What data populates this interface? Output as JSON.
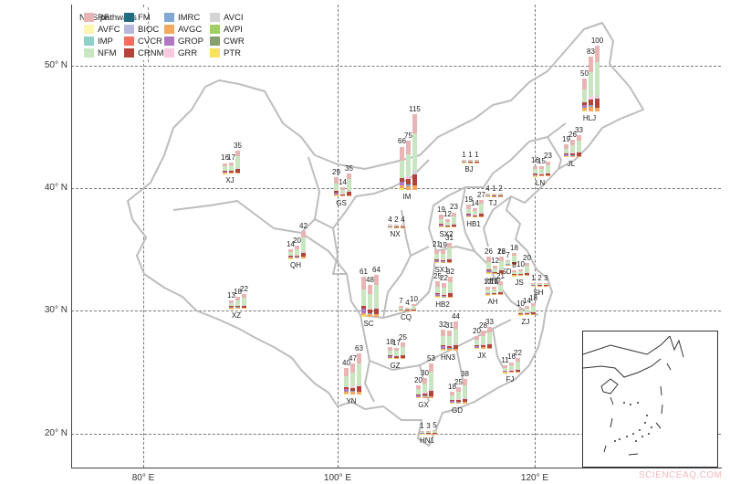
{
  "chart_data": {
    "type": "map-stacked-bar",
    "title": "",
    "legend_title": "NCS pathways",
    "legend": [
      {
        "code": "RF",
        "color": "#e8b4b4"
      },
      {
        "code": "AVFC",
        "color": "#fdf5b0"
      },
      {
        "code": "IMP",
        "color": "#8fd0c8"
      },
      {
        "code": "NFM",
        "color": "#c8e6c0"
      },
      {
        "code": "FM",
        "color": "#1f6b80"
      },
      {
        "code": "BIOC",
        "color": "#b8b8dc"
      },
      {
        "code": "CVCR",
        "color": "#f07060"
      },
      {
        "code": "CRNM",
        "color": "#b0443a"
      },
      {
        "code": "IMRC",
        "color": "#80a8d0"
      },
      {
        "code": "AVGC",
        "color": "#f4a860"
      },
      {
        "code": "GROP",
        "color": "#b078c0"
      },
      {
        "code": "GRR",
        "color": "#f8c8e0"
      },
      {
        "code": "AVCI",
        "color": "#d4d4d4"
      },
      {
        "code": "AVPI",
        "color": "#a0d060"
      },
      {
        "code": "CWR",
        "color": "#88a070"
      },
      {
        "code": "PTR",
        "color": "#f8e060"
      }
    ],
    "x_axis": {
      "ticks": [
        "80° E",
        "100° E",
        "120° E"
      ]
    },
    "y_axis": {
      "ticks": [
        "50° N",
        "40° N",
        "30° N",
        "20° N"
      ]
    },
    "grid": true,
    "provinces": [
      {
        "name": "HLJ",
        "values": [
          50,
          83,
          100
        ]
      },
      {
        "name": "JL",
        "values": [
          19,
          26,
          33
        ]
      },
      {
        "name": "LN",
        "values": [
          16,
          15,
          23
        ]
      },
      {
        "name": "IM",
        "values": [
          66,
          75,
          115
        ]
      },
      {
        "name": "XJ",
        "values": [
          16,
          17,
          35
        ]
      },
      {
        "name": "GS",
        "values": [
          29,
          14,
          35
        ]
      },
      {
        "name": "BJ",
        "values": [
          1,
          1,
          1
        ]
      },
      {
        "name": "TJ",
        "values": [
          4,
          1,
          2
        ]
      },
      {
        "name": "HB1",
        "values": [
          19,
          14,
          27
        ]
      },
      {
        "name": "SX2",
        "values": [
          19,
          12,
          23
        ]
      },
      {
        "name": "NX",
        "values": [
          4,
          2,
          4
        ]
      },
      {
        "name": "QH",
        "values": [
          14,
          20,
          42
        ]
      },
      {
        "name": "SX1",
        "values": [
          21,
          19,
          31
        ]
      },
      {
        "name": "SD",
        "values": [
          12,
          7,
          18
        ]
      },
      {
        "name": "HN2",
        "values": [
          26,
          12,
          26
        ]
      },
      {
        "name": "JS",
        "values": [
          8,
          10,
          20
        ]
      },
      {
        "name": "SH",
        "values": [
          1,
          2,
          3
        ]
      },
      {
        "name": "AH",
        "values": [
          12,
          12,
          21
        ]
      },
      {
        "name": "HB2",
        "values": [
          25,
          22,
          32
        ]
      },
      {
        "name": "XZ",
        "values": [
          13,
          18,
          22
        ]
      },
      {
        "name": "SC",
        "values": [
          61,
          48,
          64
        ]
      },
      {
        "name": "CQ",
        "values": [
          7,
          4,
          10
        ]
      },
      {
        "name": "ZJ",
        "values": [
          10,
          14,
          18
        ]
      },
      {
        "name": "GZ",
        "values": [
          18,
          17,
          25
        ]
      },
      {
        "name": "HN3",
        "values": [
          32,
          31,
          44
        ]
      },
      {
        "name": "JX",
        "values": [
          20,
          28,
          33
        ]
      },
      {
        "name": "YN",
        "values": [
          40,
          47,
          63
        ]
      },
      {
        "name": "GX",
        "values": [
          20,
          30,
          53
        ]
      },
      {
        "name": "GD",
        "values": [
          18,
          25,
          38
        ]
      },
      {
        "name": "FJ",
        "values": [
          11,
          16,
          22
        ]
      },
      {
        "name": "HN1",
        "values": [
          1,
          3,
          5
        ]
      }
    ]
  },
  "watermark": "SCIENCEAQ.COM"
}
